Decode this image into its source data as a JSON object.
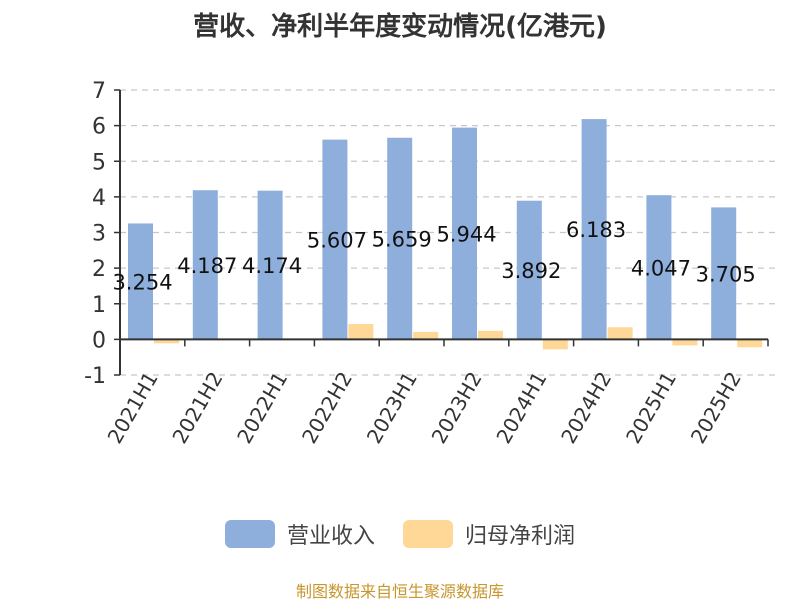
{
  "chart_data": {
    "type": "bar",
    "title": "营收、净利半年度变动情况(亿港元)",
    "categories": [
      "2021H1",
      "2021H2",
      "2022H1",
      "2022H2",
      "2023H1",
      "2023H2",
      "2024H1",
      "2024H2",
      "2025H1",
      "2025H2"
    ],
    "series": [
      {
        "name": "营业收入",
        "color": "#8eaedb",
        "values": [
          3.254,
          4.187,
          4.174,
          5.607,
          5.659,
          5.944,
          3.892,
          6.183,
          4.047,
          3.705
        ],
        "labels": [
          "3.254",
          "4.187",
          "4.174",
          "5.607",
          "5.659",
          "5.944",
          "3.892",
          "6.183",
          "4.047",
          "3.705"
        ]
      },
      {
        "name": "归母净利润",
        "color": "#ffd796",
        "values": [
          -0.11,
          0.01,
          0.01,
          0.43,
          0.21,
          0.24,
          -0.28,
          0.34,
          -0.17,
          -0.22
        ]
      }
    ],
    "ylim": [
      -1,
      7
    ],
    "yticks": [
      "-1",
      "0",
      "1",
      "2",
      "3",
      "4",
      "5",
      "6",
      "7"
    ],
    "grid": true,
    "legend": "bottom"
  },
  "footer": "制图数据来自恒生聚源数据库"
}
